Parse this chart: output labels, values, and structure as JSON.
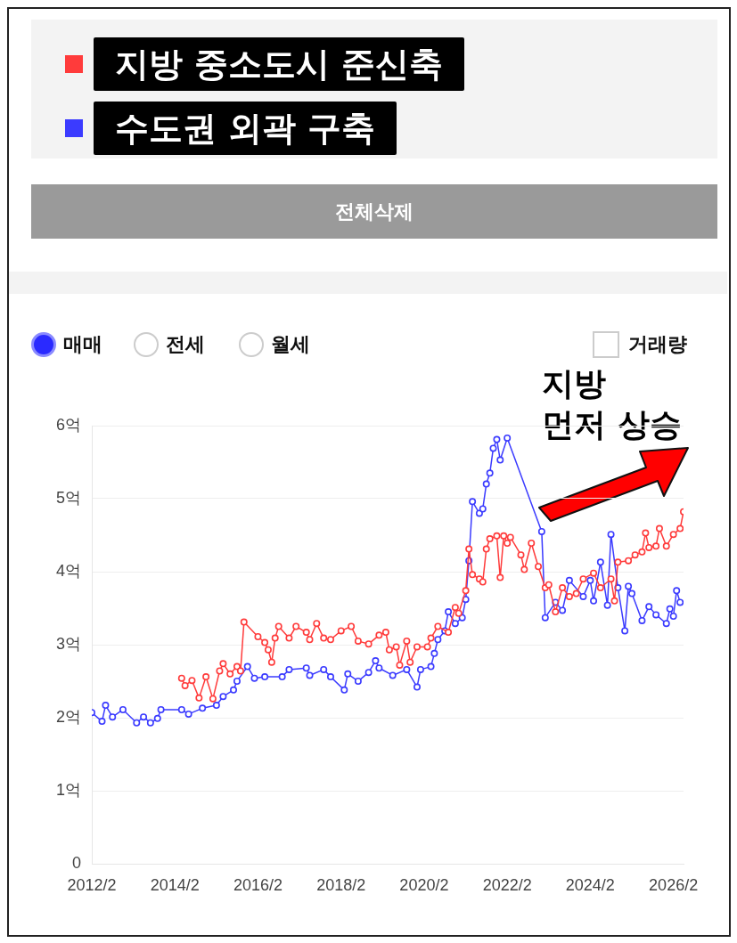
{
  "chart_data": {
    "type": "line",
    "legend": "top",
    "marker": "circle",
    "line_style": "solid",
    "grid": "y",
    "xlim": [
      "2012-02",
      "2026-05"
    ],
    "xticks": [
      {
        "value": "2012-02",
        "label": "2012/2"
      },
      {
        "value": "2014-02",
        "label": "2014/2"
      },
      {
        "value": "2016-02",
        "label": "2016/2"
      },
      {
        "value": "2018-02",
        "label": "2018/2"
      },
      {
        "value": "2020-02",
        "label": "2020/2"
      },
      {
        "value": "2022-02",
        "label": "2022/2"
      },
      {
        "value": "2024-02",
        "label": "2024/2"
      },
      {
        "value": "2026-02",
        "label": "2026/2"
      }
    ],
    "ylim": [
      0,
      6
    ],
    "yticks": [
      0,
      {
        "value": 1,
        "label": "1억"
      },
      {
        "value": 2,
        "label": "2억"
      },
      {
        "value": 3,
        "label": "3억"
      },
      {
        "value": 4,
        "label": "4억"
      },
      {
        "value": 5,
        "label": "5억"
      },
      {
        "value": 6,
        "label": "6억"
      }
    ],
    "annotations": [
      "전체삭제",
      "매매",
      "전세",
      "월세",
      "거래량",
      "지방\n먼저 상승"
    ],
    "series": [
      {
        "name": "지방 중소도시 준신축",
        "color": "#ff3b3b",
        "x": [
          "2014-04",
          "2014-05",
          "2014-07",
          "2014-09",
          "2014-11",
          "2015-01",
          "2015-03",
          "2015-04",
          "2015-06",
          "2015-08",
          "2015-09",
          "2015-10",
          "2016-02",
          "2016-04",
          "2016-05",
          "2016-06",
          "2016-07",
          "2016-08",
          "2016-11",
          "2017-01",
          "2017-04",
          "2017-05",
          "2017-07",
          "2017-09",
          "2017-11",
          "2018-02",
          "2018-05",
          "2018-07",
          "2018-10",
          "2019-01",
          "2019-03",
          "2019-04",
          "2019-06",
          "2019-07",
          "2019-09",
          "2019-10",
          "2019-12",
          "2020-03",
          "2020-04",
          "2020-06",
          "2020-09",
          "2020-11",
          "2020-12",
          "2021-02",
          "2021-03",
          "2021-04",
          "2021-06",
          "2021-07",
          "2021-08",
          "2021-09",
          "2021-11",
          "2021-12",
          "2022-01",
          "2022-02",
          "2022-03",
          "2022-06",
          "2022-07",
          "2022-09",
          "2022-11",
          "2023-01",
          "2023-02",
          "2023-04",
          "2023-06",
          "2023-08",
          "2023-10",
          "2023-12",
          "2024-03",
          "2024-05",
          "2024-08",
          "2024-09",
          "2024-10",
          "2025-01",
          "2025-03",
          "2025-05",
          "2025-06",
          "2025-07",
          "2025-09",
          "2025-10",
          "2025-12",
          "2026-02",
          "2026-04",
          "2026-05"
        ],
        "values": [
          2.54,
          2.44,
          2.51,
          2.27,
          2.56,
          2.26,
          2.64,
          2.74,
          2.6,
          2.7,
          2.64,
          3.31,
          3.11,
          3.03,
          2.93,
          2.76,
          3.09,
          3.25,
          3.09,
          3.25,
          3.17,
          3.07,
          3.29,
          3.09,
          3.07,
          3.19,
          3.25,
          3.05,
          3.01,
          3.13,
          3.17,
          2.93,
          2.97,
          2.72,
          3.05,
          2.76,
          2.97,
          2.97,
          3.09,
          3.25,
          3.17,
          3.51,
          3.43,
          3.74,
          4.31,
          3.96,
          3.9,
          3.86,
          4.31,
          4.45,
          4.49,
          3.92,
          4.49,
          4.39,
          4.47,
          4.23,
          4.03,
          4.39,
          4.07,
          3.78,
          3.82,
          3.45,
          3.78,
          3.66,
          3.7,
          3.9,
          3.98,
          3.78,
          3.9,
          3.6,
          4.13,
          4.15,
          4.23,
          4.27,
          4.53,
          4.33,
          4.35,
          4.59,
          4.35,
          4.51,
          4.59,
          4.82
        ]
      },
      {
        "name": "수도권 외곽 구축",
        "color": "#3b3bff",
        "x": [
          "2012-02",
          "2012-05",
          "2012-06",
          "2012-08",
          "2012-11",
          "2013-03",
          "2013-05",
          "2013-07",
          "2013-09",
          "2013-10",
          "2014-04",
          "2014-06",
          "2014-10",
          "2015-02",
          "2015-04",
          "2015-07",
          "2015-08",
          "2015-11",
          "2016-01",
          "2016-04",
          "2016-09",
          "2016-11",
          "2017-04",
          "2017-05",
          "2017-09",
          "2017-11",
          "2018-03",
          "2018-04",
          "2018-07",
          "2018-10",
          "2018-12",
          "2019-01",
          "2019-05",
          "2019-09",
          "2019-12",
          "2020-01",
          "2020-04",
          "2020-05",
          "2020-06",
          "2020-08",
          "2020-09",
          "2020-11",
          "2021-01",
          "2021-02",
          "2021-03",
          "2021-04",
          "2021-06",
          "2021-07",
          "2021-08",
          "2021-09",
          "2021-10",
          "2021-11",
          "2021-12",
          "2022-02",
          "2022-12",
          "2023-01",
          "2023-04",
          "2023-06",
          "2023-08",
          "2023-12",
          "2024-02",
          "2024-03",
          "2024-05",
          "2024-07",
          "2024-08",
          "2024-10",
          "2024-12",
          "2025-01",
          "2025-02",
          "2025-05",
          "2025-07",
          "2025-09",
          "2025-12",
          "2026-01",
          "2026-02",
          "2026-03",
          "2026-04"
        ],
        "values": [
          2.07,
          1.95,
          2.17,
          2.01,
          2.11,
          1.93,
          2.01,
          1.93,
          1.99,
          2.11,
          2.11,
          2.05,
          2.13,
          2.17,
          2.29,
          2.38,
          2.5,
          2.7,
          2.54,
          2.56,
          2.56,
          2.66,
          2.68,
          2.58,
          2.66,
          2.56,
          2.38,
          2.6,
          2.5,
          2.62,
          2.78,
          2.68,
          2.58,
          2.66,
          2.42,
          2.66,
          2.7,
          2.88,
          3.07,
          3.19,
          3.45,
          3.29,
          3.37,
          3.62,
          4.15,
          4.96,
          4.8,
          4.86,
          5.2,
          5.35,
          5.69,
          5.81,
          5.53,
          5.83,
          4.55,
          3.37,
          3.58,
          3.47,
          3.88,
          3.66,
          3.88,
          3.6,
          4.13,
          3.54,
          4.51,
          3.78,
          3.19,
          3.8,
          3.7,
          3.33,
          3.52,
          3.41,
          3.29,
          3.49,
          3.39,
          3.74,
          3.58
        ]
      }
    ]
  }
}
